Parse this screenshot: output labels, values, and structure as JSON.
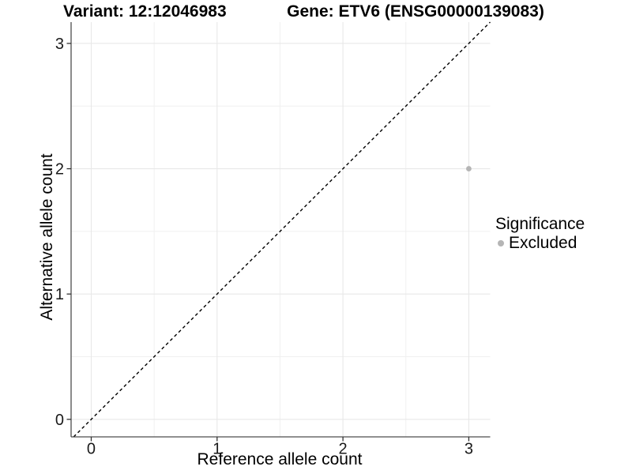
{
  "figure": {
    "title_left": "Variant: 12:12046983",
    "title_right": "Gene: ETV6 (ENSG00000139083)"
  },
  "legend": {
    "title": "Significance",
    "items": [
      {
        "label": "Excluded",
        "color": "#b5b5b5"
      }
    ]
  },
  "chart_data": {
    "type": "scatter",
    "titles": [
      "Variant: 12:12046983",
      "Gene: ETV6 (ENSG00000139083)"
    ],
    "xlabel": "Reference allele count",
    "ylabel": "Alternative allele count",
    "xlim": [
      -0.16,
      3.17
    ],
    "ylim": [
      -0.14,
      3.17
    ],
    "x_ticks": [
      0,
      1,
      2,
      3
    ],
    "y_ticks": [
      0,
      1,
      2,
      3
    ],
    "x_minor_gridlines": [
      0.5,
      1.5,
      2.5
    ],
    "y_minor_gridlines": [
      0.5,
      1.5,
      2.5
    ],
    "grid": "major+minor",
    "legend_position": "right",
    "legend_title": "Significance",
    "series": [
      {
        "name": "Excluded",
        "color": "#b5b5b5",
        "marker": "circle",
        "marker_radius": 3.4,
        "points": [
          [
            3,
            2
          ]
        ]
      }
    ],
    "reference_line": {
      "label": "identity",
      "slope": 1,
      "intercept": 0,
      "style": "dashed",
      "color": "#000000"
    }
  },
  "colors": {
    "background": "#ffffff",
    "axis_line": "#4d4d4d",
    "tick_mark": "#333333",
    "tick_label": "#1a1a1a",
    "grid_major": "#e8e8e8",
    "grid_minor": "#f0f0f0",
    "point": "#b5b5b5",
    "title_text": "#000000"
  }
}
